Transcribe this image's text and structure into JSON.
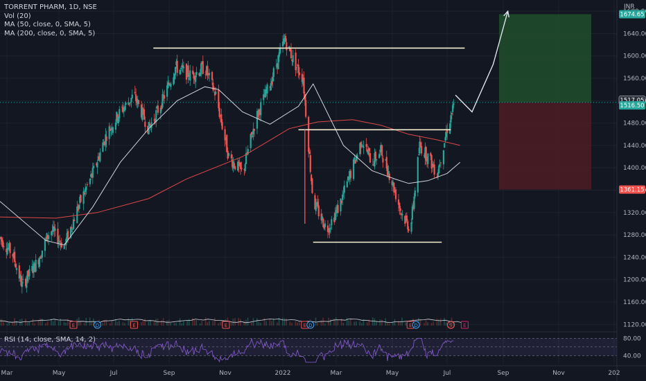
{
  "legend": {
    "symbol": "TORRENT PHARM, 1D, NSE",
    "volume": "Vol (20)",
    "ma50": "MA (50, close, 0, SMA, 5)",
    "ma200": "MA (200, close, 0, SMA, 5)"
  },
  "rsi_label": "RSI (14, close, SMA, 14, 2)",
  "currency": "INR",
  "colors": {
    "background": "#131722",
    "up": "#26a69a",
    "down": "#ef5350",
    "ma50": "#d1d4dc",
    "ma200": "#e04848",
    "level_line": "#f5f0d2",
    "rsi": "#7e57c2",
    "target_zone": "#1f4a2a",
    "stop_zone": "#4a1c22"
  },
  "chart_data": {
    "type": "candlestick",
    "y_axis": {
      "range": [
        1108,
        1700
      ],
      "ticks": [
        1120,
        1160,
        1200,
        1240,
        1280,
        1320,
        1360,
        1400,
        1440,
        1480,
        1520,
        1560,
        1600,
        1640,
        1680
      ]
    },
    "x_axis": {
      "labels": [
        "Mar",
        "May",
        "Jul",
        "Sep",
        "Nov",
        "2022",
        "Mar",
        "May",
        "Jul",
        "Sep",
        "Nov",
        "202"
      ]
    },
    "price_labels": [
      {
        "value": 1674.65,
        "text": "1674.65",
        "kind": "target"
      },
      {
        "value": 1517.05,
        "text": "1517.05",
        "kind": "neutral"
      },
      {
        "value": 1516.5,
        "text": "1516.50",
        "kind": "current"
      },
      {
        "value": 1361.15,
        "text": "1361.15",
        "kind": "stop"
      }
    ],
    "position_tool": {
      "entry": 1517,
      "target": 1674.65,
      "stop": 1361.15,
      "start": "2022-07-15",
      "end": "2022-09-30"
    },
    "levels": [
      {
        "start": "2021-08-15",
        "end": "2022-07-20",
        "y": 1614
      },
      {
        "start": "2022-01-20",
        "end": "2022-07-05",
        "y": 1468
      },
      {
        "start": "2022-02-05",
        "end": "2022-06-25",
        "y": 1267
      }
    ],
    "projection": [
      {
        "date": "2022-07-10",
        "value": 1530
      },
      {
        "date": "2022-07-28",
        "value": 1500
      },
      {
        "date": "2022-08-20",
        "value": 1585
      },
      {
        "date": "2022-09-05",
        "value": 1680
      }
    ],
    "price_waypoints": [
      {
        "date": "2021-03-01",
        "value": 1275
      },
      {
        "date": "2021-03-15",
        "value": 1245
      },
      {
        "date": "2021-03-25",
        "value": 1190
      },
      {
        "date": "2021-04-10",
        "value": 1230
      },
      {
        "date": "2021-04-25",
        "value": 1290
      },
      {
        "date": "2021-05-10",
        "value": 1260
      },
      {
        "date": "2021-05-25",
        "value": 1330
      },
      {
        "date": "2021-06-10",
        "value": 1390
      },
      {
        "date": "2021-06-25",
        "value": 1460
      },
      {
        "date": "2021-07-10",
        "value": 1500
      },
      {
        "date": "2021-07-25",
        "value": 1530
      },
      {
        "date": "2021-08-10",
        "value": 1470
      },
      {
        "date": "2021-08-25",
        "value": 1520
      },
      {
        "date": "2021-09-08",
        "value": 1580
      },
      {
        "date": "2021-09-25",
        "value": 1565
      },
      {
        "date": "2021-10-10",
        "value": 1580
      },
      {
        "date": "2021-10-22",
        "value": 1530
      },
      {
        "date": "2021-11-05",
        "value": 1420
      },
      {
        "date": "2021-11-20",
        "value": 1390
      },
      {
        "date": "2021-12-05",
        "value": 1490
      },
      {
        "date": "2021-12-20",
        "value": 1550
      },
      {
        "date": "2022-01-05",
        "value": 1630
      },
      {
        "date": "2022-01-15",
        "value": 1590
      },
      {
        "date": "2022-01-25",
        "value": 1560
      },
      {
        "date": "2022-02-05",
        "value": 1340
      },
      {
        "date": "2022-02-20",
        "value": 1290
      },
      {
        "date": "2022-03-05",
        "value": 1330
      },
      {
        "date": "2022-03-20",
        "value": 1400
      },
      {
        "date": "2022-03-30",
        "value": 1450
      },
      {
        "date": "2022-04-10",
        "value": 1410
      },
      {
        "date": "2022-04-20",
        "value": 1430
      },
      {
        "date": "2022-05-01",
        "value": 1380
      },
      {
        "date": "2022-05-12",
        "value": 1320
      },
      {
        "date": "2022-05-22",
        "value": 1290
      },
      {
        "date": "2022-06-01",
        "value": 1440
      },
      {
        "date": "2022-06-10",
        "value": 1420
      },
      {
        "date": "2022-06-20",
        "value": 1390
      },
      {
        "date": "2022-07-01",
        "value": 1470
      },
      {
        "date": "2022-07-10",
        "value": 1520
      }
    ],
    "ma50": [
      {
        "date": "2021-03-01",
        "value": 1340
      },
      {
        "date": "2021-04-20",
        "value": 1270
      },
      {
        "date": "2021-05-10",
        "value": 1262
      },
      {
        "date": "2021-06-10",
        "value": 1330
      },
      {
        "date": "2021-07-10",
        "value": 1410
      },
      {
        "date": "2021-08-10",
        "value": 1470
      },
      {
        "date": "2021-09-10",
        "value": 1520
      },
      {
        "date": "2021-10-10",
        "value": 1545
      },
      {
        "date": "2021-10-25",
        "value": 1540
      },
      {
        "date": "2021-11-20",
        "value": 1500
      },
      {
        "date": "2021-12-20",
        "value": 1478
      },
      {
        "date": "2022-01-20",
        "value": 1510
      },
      {
        "date": "2022-02-05",
        "value": 1550
      },
      {
        "date": "2022-03-10",
        "value": 1440
      },
      {
        "date": "2022-04-10",
        "value": 1395
      },
      {
        "date": "2022-05-05",
        "value": 1380
      },
      {
        "date": "2022-05-20",
        "value": 1372
      },
      {
        "date": "2022-06-10",
        "value": 1377
      },
      {
        "date": "2022-07-01",
        "value": 1390
      },
      {
        "date": "2022-07-15",
        "value": 1410
      }
    ],
    "ma200": [
      {
        "date": "2021-03-01",
        "value": 1312
      },
      {
        "date": "2021-05-01",
        "value": 1310
      },
      {
        "date": "2021-06-15",
        "value": 1320
      },
      {
        "date": "2021-08-10",
        "value": 1345
      },
      {
        "date": "2021-09-20",
        "value": 1380
      },
      {
        "date": "2021-11-20",
        "value": 1420
      },
      {
        "date": "2022-01-10",
        "value": 1470
      },
      {
        "date": "2022-02-10",
        "value": 1482
      },
      {
        "date": "2022-03-20",
        "value": 1486
      },
      {
        "date": "2022-04-20",
        "value": 1476
      },
      {
        "date": "2022-05-20",
        "value": 1460
      },
      {
        "date": "2022-06-20",
        "value": 1450
      },
      {
        "date": "2022-07-15",
        "value": 1440
      }
    ],
    "events": [
      {
        "date": "2021-05-20",
        "label": "E"
      },
      {
        "date": "2021-06-15",
        "label": "D"
      },
      {
        "date": "2021-07-25",
        "label": "E"
      },
      {
        "date": "2021-11-02",
        "label": "E"
      },
      {
        "date": "2022-01-27",
        "label": "E"
      },
      {
        "date": "2022-02-02",
        "label": "D"
      },
      {
        "date": "2022-05-22",
        "label": "E"
      },
      {
        "date": "2022-05-28",
        "label": "D"
      },
      {
        "date": "2022-07-05",
        "label": "S"
      },
      {
        "date": "2022-07-20",
        "label": "E"
      }
    ],
    "rsi": {
      "ticks": [
        80,
        40
      ],
      "range": [
        20,
        90
      ]
    }
  }
}
